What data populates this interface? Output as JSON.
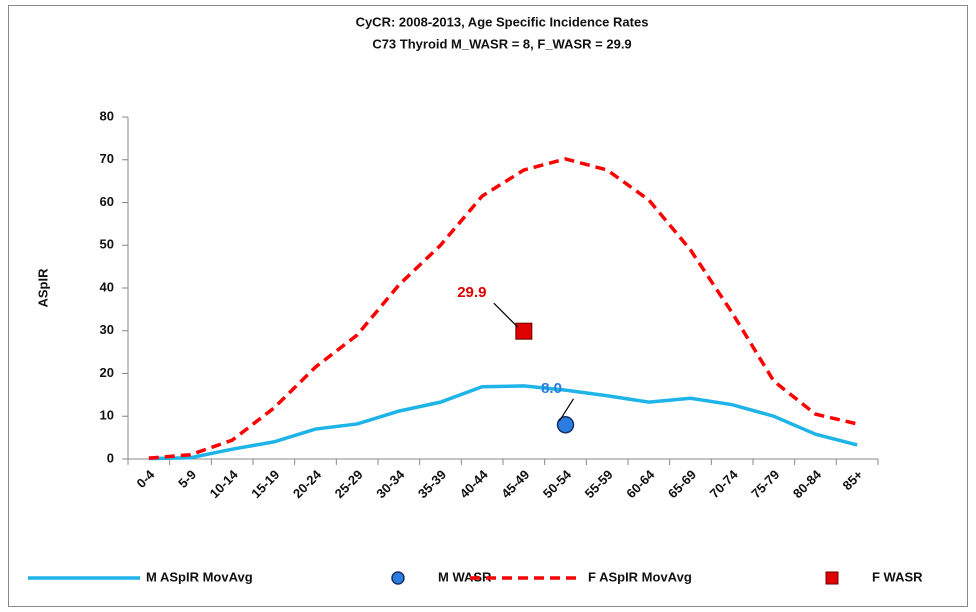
{
  "chart_data": {
    "type": "line",
    "title": "CyCR: 2008-2013, Age Specific Incidence Rates",
    "subtitle": "C73 Thyroid    M_WASR = 8, F_WASR = 29.9",
    "y_label": "ASpIR",
    "categories": [
      "0-4",
      "5-9",
      "10-14",
      "15-19",
      "20-24",
      "25-29",
      "30-34",
      "35-39",
      "40-44",
      "45-49",
      "50-54",
      "55-59",
      "60-64",
      "65-69",
      "70-74",
      "75-79",
      "80-84",
      "85+"
    ],
    "ylim": [
      0,
      80
    ],
    "yticks": [
      0,
      10,
      20,
      30,
      40,
      50,
      60,
      70,
      80
    ],
    "grid": false,
    "legend": "bottom",
    "series": [
      {
        "name": "M ASpIR MovAvg",
        "color": "#1eb4e8",
        "style": "line",
        "dash": false,
        "values": [
          0.1,
          0.3,
          2.3,
          4.0,
          7.0,
          8.2,
          11.2,
          13.3,
          16.9,
          17.1,
          16.1,
          14.8,
          13.3,
          14.2,
          12.7,
          10.0,
          5.8,
          3.3
        ]
      },
      {
        "name": "M WASR",
        "color": "#2b7de0",
        "style": "marker",
        "marker": "circle",
        "values": [
          null,
          null,
          null,
          null,
          null,
          null,
          null,
          null,
          null,
          null,
          8,
          null,
          null,
          null,
          null,
          null,
          null,
          null
        ],
        "value_labels": [
          null,
          null,
          null,
          null,
          null,
          null,
          null,
          null,
          null,
          null,
          "8.0",
          null,
          null,
          null,
          null,
          null,
          null,
          null
        ]
      },
      {
        "name": "F ASpIR MovAvg",
        "color": "#ff0000",
        "style": "line",
        "dash": true,
        "values": [
          0.2,
          1.0,
          4.4,
          11.9,
          21.5,
          29.0,
          40.7,
          50.0,
          61.5,
          67.6,
          70.2,
          67.6,
          60.6,
          48.9,
          34.2,
          18.2,
          10.5,
          8.2
        ]
      },
      {
        "name": "F WASR",
        "color": "#e00000",
        "style": "marker",
        "marker": "square",
        "values": [
          null,
          null,
          null,
          null,
          null,
          null,
          null,
          null,
          null,
          29.9,
          null,
          null,
          null,
          null,
          null,
          null,
          null,
          null
        ],
        "value_labels": [
          null,
          null,
          null,
          null,
          null,
          null,
          null,
          null,
          null,
          "29.9",
          null,
          null,
          null,
          null,
          null,
          null,
          null,
          null
        ]
      }
    ]
  }
}
